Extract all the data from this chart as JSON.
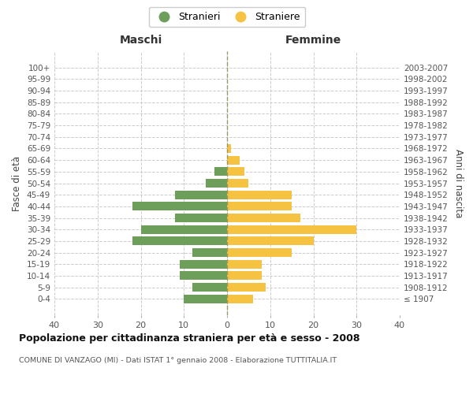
{
  "age_groups": [
    "100+",
    "95-99",
    "90-94",
    "85-89",
    "80-84",
    "75-79",
    "70-74",
    "65-69",
    "60-64",
    "55-59",
    "50-54",
    "45-49",
    "40-44",
    "35-39",
    "30-34",
    "25-29",
    "20-24",
    "15-19",
    "10-14",
    "5-9",
    "0-4"
  ],
  "birth_years": [
    "≤ 1907",
    "1908-1912",
    "1913-1917",
    "1918-1922",
    "1923-1927",
    "1928-1932",
    "1933-1937",
    "1938-1942",
    "1943-1947",
    "1948-1952",
    "1953-1957",
    "1958-1962",
    "1963-1967",
    "1968-1972",
    "1973-1977",
    "1978-1982",
    "1983-1987",
    "1988-1992",
    "1993-1997",
    "1998-2002",
    "2003-2007"
  ],
  "maschi": [
    0,
    0,
    0,
    0,
    0,
    0,
    0,
    0,
    0,
    3,
    5,
    12,
    22,
    12,
    20,
    22,
    8,
    11,
    11,
    8,
    10
  ],
  "femmine": [
    0,
    0,
    0,
    0,
    0,
    0,
    0,
    1,
    3,
    4,
    5,
    15,
    15,
    17,
    30,
    20,
    15,
    8,
    8,
    9,
    6
  ],
  "maschi_color": "#6d9e5a",
  "femmine_color": "#f5c242",
  "title_main": "Popolazione per cittadinanza straniera per età e sesso - 2008",
  "title_sub": "COMUNE DI VANZAGO (MI) - Dati ISTAT 1° gennaio 2008 - Elaborazione TUTTITALIA.IT",
  "xlabel_left": "Maschi",
  "xlabel_right": "Femmine",
  "ylabel_left": "Fasce di età",
  "ylabel_right": "Anni di nascita",
  "legend_maschi": "Stranieri",
  "legend_femmine": "Straniere",
  "xlim": 40,
  "background_color": "#ffffff",
  "grid_color": "#cccccc",
  "bar_height": 0.75
}
